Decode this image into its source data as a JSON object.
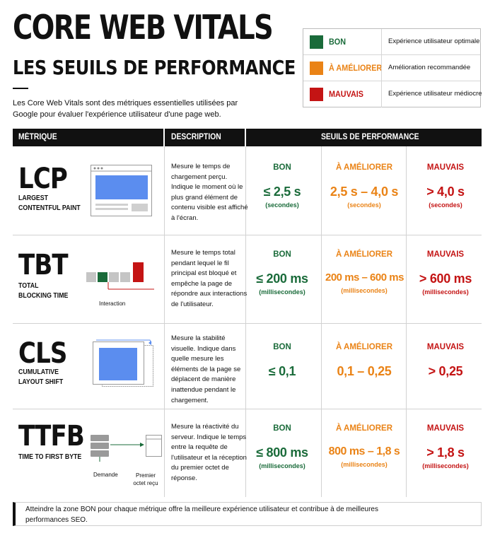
{
  "header": {
    "title": "CORE WEB VITALS",
    "subtitle": "LES SEUILS DE PERFORMANCE",
    "intro": "Les Core Web Vitals sont des métriques essentielles utilisées par Google pour évaluer l'expérience utilisateur d'une page web."
  },
  "legend": [
    {
      "label": "BON",
      "desc": "Expérience utilisateur optimale",
      "color": "#1a6b3a"
    },
    {
      "label": "À AMÉLIORER",
      "desc": "Amélioration recommandée",
      "color": "#ea8316"
    },
    {
      "label": "MAUVAIS",
      "desc": "Expérience utilisateur médiocre",
      "color": "#c41414"
    }
  ],
  "table": {
    "headers": {
      "metric": "MÉTRIQUE",
      "description": "DESCRIPTION",
      "thresholds": "SEUILS DE PERFORMANCE"
    },
    "rows": [
      {
        "code": "LCP",
        "name": "LARGEST CONTENTFUL PAINT",
        "description": "Mesure le temps de chargement perçu. Indique le moment où le plus grand élément de contenu visible est affiché à l'écran.",
        "good": {
          "label": "BON",
          "value": "≤ 2,5 s",
          "unit": "(secondes)"
        },
        "improve": {
          "label": "À AMÉLIORER",
          "value": "2,5 s – 4,0 s",
          "unit": "(secondes)"
        },
        "poor": {
          "label": "MAUVAIS",
          "value": "> 4,0 s",
          "unit": "(secondes)"
        }
      },
      {
        "code": "TBT",
        "name": "TOTAL BLOCKING TIME",
        "description": "Mesure le temps total pendant lequel le fil principal est bloqué et empêche la page de répondre aux interactions de l'utilisateur.",
        "illus_label": "Interaction",
        "good": {
          "label": "BON",
          "value": "≤ 200 ms",
          "unit": "(millisecondes)"
        },
        "improve": {
          "label": "À AMÉLIORER",
          "value": "200 ms – 600 ms",
          "unit": "(millisecondes)"
        },
        "poor": {
          "label": "MAUVAIS",
          "value": "> 600 ms",
          "unit": "(millisecondes)"
        }
      },
      {
        "code": "CLS",
        "name": "CUMULATIVE LAYOUT SHIFT",
        "description": "Mesure la stabilité visuelle. Indique dans quelle mesure les éléments de la page se déplacent de manière inattendue pendant le chargement.",
        "good": {
          "label": "BON",
          "value": "≤ 0,1",
          "unit": ""
        },
        "improve": {
          "label": "À AMÉLIORER",
          "value": "0,1 – 0,25",
          "unit": ""
        },
        "poor": {
          "label": "MAUVAIS",
          "value": "> 0,25",
          "unit": ""
        }
      },
      {
        "code": "TTFB",
        "name": "TIME TO FIRST BYTE",
        "description": "Mesure la réactivité du serveur. Indique le temps entre la requête de l'utilisateur et la réception du premier octet de réponse.",
        "illus_label_left": "Demande",
        "illus_label_right": "Premier octet reçu",
        "good": {
          "label": "BON",
          "value": "≤ 800 ms",
          "unit": "(millisecondes)"
        },
        "improve": {
          "label": "À AMÉLIORER",
          "value": "800 ms – 1,8 s",
          "unit": "(millisecondes)"
        },
        "poor": {
          "label": "MAUVAIS",
          "value": "> 1,8 s",
          "unit": "(millisecondes)"
        }
      }
    ]
  },
  "footer": {
    "text": "Atteindre la zone BON pour chaque métrique offre la meilleure expérience utilisateur et contribue à de meilleures performances SEO."
  }
}
